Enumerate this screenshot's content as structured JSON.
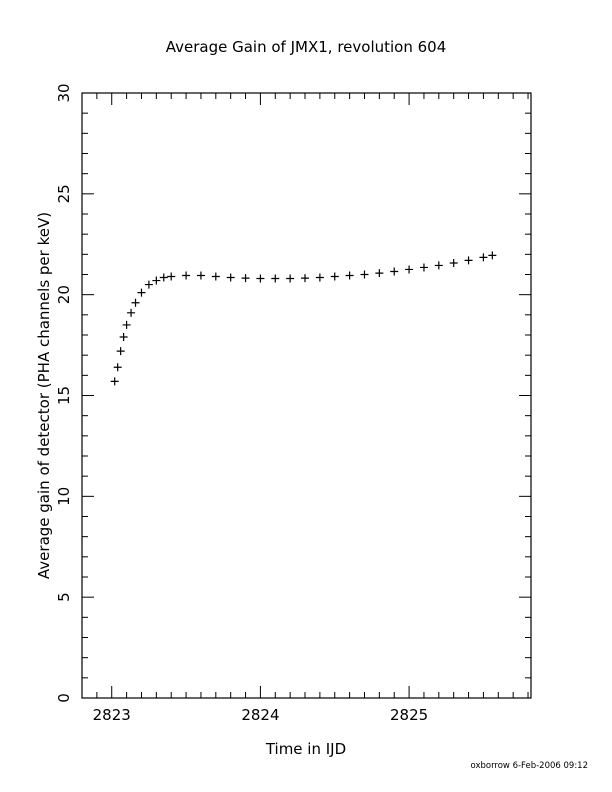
{
  "chart_data": {
    "type": "scatter",
    "title": "Average Gain of JMX1, revolution 604",
    "xlabel": "Time in IJD",
    "ylabel": "Average gain of detector (PHA channels per keV)",
    "xlim": [
      2822.8,
      2825.82
    ],
    "ylim": [
      0,
      30
    ],
    "x_ticks": [
      "2823",
      "2824",
      "2825"
    ],
    "y_ticks": [
      "0",
      "5",
      "10",
      "15",
      "20",
      "25",
      "30"
    ],
    "marker": "plus",
    "grid": false,
    "series": [
      {
        "x": [
          2823.02,
          2823.04,
          2823.06,
          2823.08,
          2823.1,
          2823.13,
          2823.16,
          2823.2,
          2823.25,
          2823.3,
          2823.35,
          2823.4,
          2823.5,
          2823.6,
          2823.7,
          2823.8,
          2823.9,
          2824.0,
          2824.1,
          2824.2,
          2824.3,
          2824.4,
          2824.5,
          2824.6,
          2824.7,
          2824.8,
          2824.9,
          2825.0,
          2825.1,
          2825.2,
          2825.3,
          2825.4,
          2825.5,
          2825.56
        ],
        "y": [
          15.7,
          16.4,
          17.2,
          17.9,
          18.5,
          19.1,
          19.6,
          20.1,
          20.5,
          20.7,
          20.85,
          20.9,
          20.95,
          20.95,
          20.9,
          20.85,
          20.82,
          20.8,
          20.8,
          20.8,
          20.82,
          20.85,
          20.9,
          20.95,
          21.0,
          21.07,
          21.15,
          21.25,
          21.35,
          21.45,
          21.57,
          21.7,
          21.85,
          21.95
        ]
      }
    ]
  },
  "footer": {
    "credit": "oxborrow  6-Feb-2006 09:12"
  }
}
